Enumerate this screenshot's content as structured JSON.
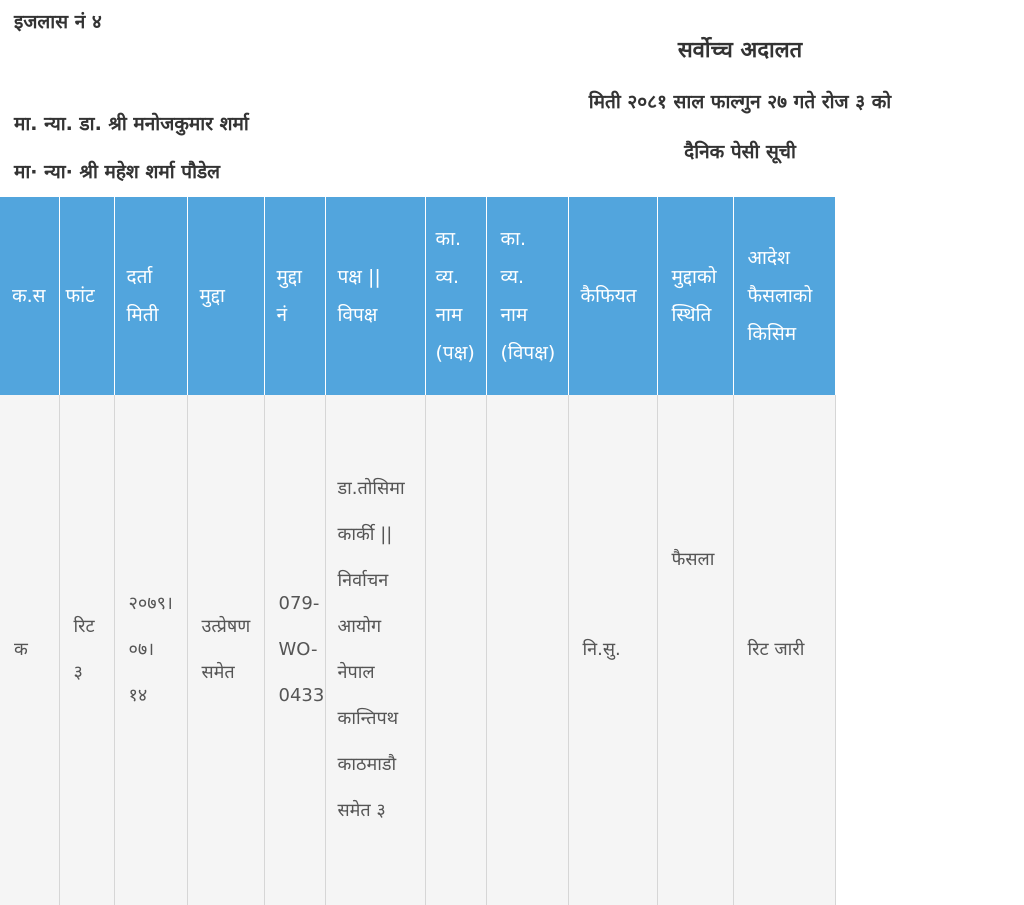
{
  "header": {
    "bench": "इजलास नं  ४",
    "judges": [
      "मा. न्या. डा. श्री मनोजकुमार शर्मा",
      "मा· न्या· श्री महेश शर्मा पौडेल"
    ],
    "court": "सर्वोच्च अदालत",
    "date": "मिती २०८१ साल फाल्गुन २७ गते रोज ३ को",
    "list_title": "दैनिक पेसी सूची"
  },
  "colors": {
    "header_bg": "#52a5dd",
    "row_bg": "#f5f5f5"
  },
  "table": {
    "columns": [
      "क.स",
      "फांट",
      "दर्ता\nमिती",
      "मुद्दा",
      "मुद्दा\nनं",
      "पक्ष ||\nविपक्ष",
      "का.\nव्य.\nनाम\n(पक्ष)",
      "का.\nव्य.\nनाम\n(विपक्ष)",
      "कैफियत",
      "मुद्दाको\nस्थिति",
      "आदेश\nफैसलाको\nकिसिम"
    ],
    "rows": [
      [
        "क",
        "रिट\n३",
        "२०७९।\n०७।\n१४",
        "उत्प्रेषण\nसमेत",
        "079-\nWO-\n0433",
        "डा.तोसिमा\nकार्की ||\nनिर्वाचन\nआयोग\nनेपाल\nकान्तिपथ\nकाठमाडौ\nसमेत ३",
        "",
        "",
        "नि.सु.",
        "फैसला",
        "रिट जारी"
      ]
    ]
  }
}
